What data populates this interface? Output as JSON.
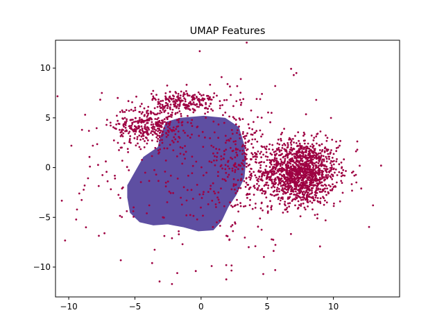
{
  "chart_data": {
    "type": "scatter",
    "title": "UMAP Features",
    "xlabel": "",
    "ylabel": "",
    "xlim": [
      -11,
      15
    ],
    "ylim": [
      -13,
      12.8
    ],
    "xticks": [
      -10,
      -5,
      0,
      5,
      10
    ],
    "yticks": [
      -10,
      -5,
      0,
      5,
      10
    ],
    "grid": false,
    "legend": "none",
    "series": [
      {
        "color": "#9e0142",
        "note_clusters": [
          {
            "cx": 7.5,
            "cy": -0.5,
            "sx": 1.4,
            "sy": 1.6,
            "n": 1400
          },
          {
            "cx": -4.0,
            "cy": 4.2,
            "sx": 1.3,
            "sy": 1.0,
            "n": 350
          },
          {
            "cx": -1.2,
            "cy": 6.6,
            "sx": 1.2,
            "sy": 0.6,
            "n": 220
          },
          {
            "cx": 3.2,
            "cy": 0.5,
            "sx": 1.2,
            "sy": 2.6,
            "n": 220
          },
          {
            "cx": 0.0,
            "cy": 0.0,
            "sx": 5.0,
            "sy": 4.5,
            "n": 260
          }
        ],
        "points": [
          [
            -9.8,
            2.2
          ],
          [
            -9.0,
            3.8
          ],
          [
            -7.5,
            7.5
          ],
          [
            -6.3,
            7.0
          ],
          [
            -8.7,
            -6.0
          ],
          [
            -7.3,
            -6.6
          ],
          [
            -8.8,
            -1.8
          ],
          [
            -9.2,
            -2.6
          ],
          [
            -3.7,
            -9.6
          ],
          [
            -2.2,
            -11.7
          ],
          [
            -1.8,
            -10.6
          ],
          [
            -0.4,
            -10.4
          ],
          [
            0.8,
            -9.9
          ],
          [
            1.9,
            -9.8
          ],
          [
            4.7,
            -10.7
          ],
          [
            5.6,
            -10.3
          ],
          [
            -2.2,
            -7.1
          ],
          [
            -1.4,
            -7.7
          ],
          [
            2.0,
            -6.9
          ],
          [
            3.6,
            -8.0
          ],
          [
            4.1,
            -7.9
          ],
          [
            -0.1,
            11.7
          ],
          [
            7.2,
            9.5
          ],
          [
            7.0,
            9.3
          ],
          [
            5.6,
            8.2
          ],
          [
            4.2,
            6.9
          ],
          [
            2.0,
            8.4
          ],
          [
            3.0,
            8.9
          ],
          [
            4.6,
            7.4
          ],
          [
            8.7,
            6.8
          ],
          [
            13.6,
            0.2
          ],
          [
            12.1,
            -2.1
          ],
          [
            11.8,
            1.8
          ],
          [
            10.5,
            -3.4
          ],
          [
            9.9,
            2.8
          ],
          [
            11.5,
            -0.4
          ],
          [
            -5.1,
            -4.0
          ],
          [
            -5.9,
            -2.0
          ],
          [
            -6.5,
            -1.1
          ],
          [
            -4.1,
            -4.6
          ],
          [
            -8.4,
            0.1
          ],
          [
            -7.1,
            4.8
          ]
        ]
      },
      {
        "color": "#5e4fa2",
        "note_blob": "dense purple region spanning x -5.5 to 3.3, y -6.3 to 5.1"
      }
    ]
  }
}
